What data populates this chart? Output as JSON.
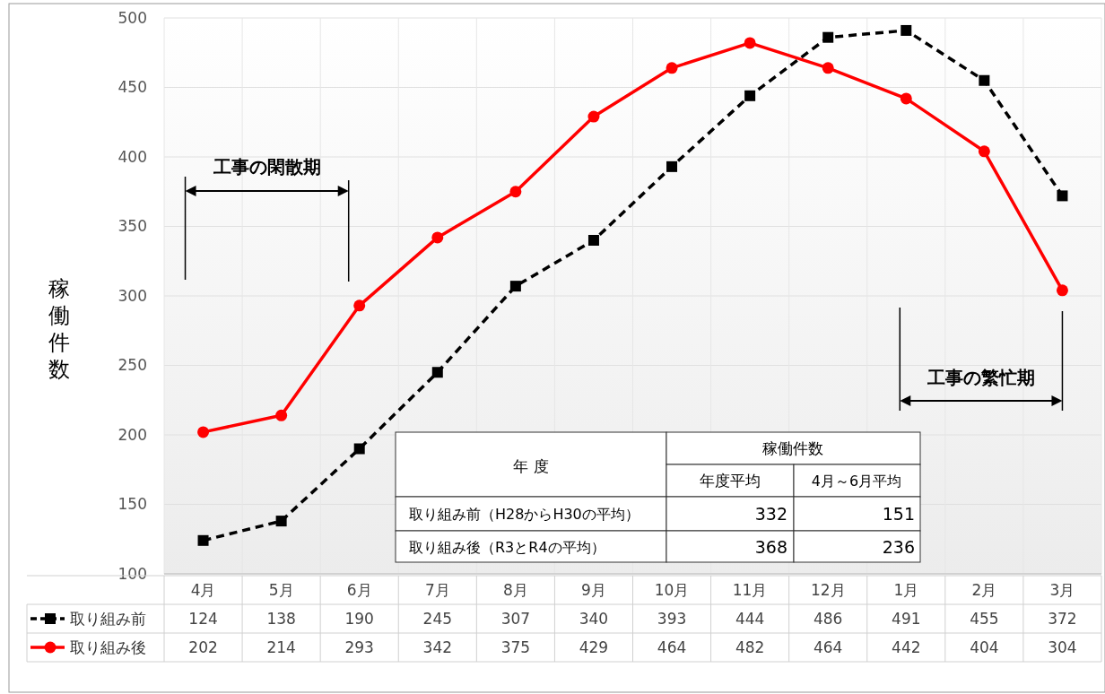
{
  "chart_data": {
    "type": "line",
    "ylabel": "稼働件数",
    "categories": [
      "4月",
      "5月",
      "6月",
      "7月",
      "8月",
      "9月",
      "10月",
      "11月",
      "12月",
      "1月",
      "2月",
      "3月"
    ],
    "series": [
      {
        "name": "取り組み前",
        "color": "#000000",
        "marker": "square",
        "line_style": "dashed",
        "values": [
          124,
          138,
          190,
          245,
          307,
          340,
          393,
          444,
          486,
          491,
          455,
          372
        ]
      },
      {
        "name": "取り組み後",
        "color": "#ff0000",
        "marker": "circle",
        "line_style": "solid",
        "values": [
          202,
          214,
          293,
          342,
          375,
          429,
          464,
          482,
          464,
          442,
          404,
          304
        ]
      }
    ],
    "ylim": [
      100,
      500
    ],
    "yticks": [
      100,
      150,
      200,
      250,
      300,
      350,
      400,
      450,
      500
    ],
    "grid": true,
    "data_labels": true,
    "legend": "bottom",
    "annotations": [
      "工事の閑散期",
      "工事の繁忙期",
      "年 度",
      "稼働件数",
      "年度平均",
      "4月～6月平均",
      "取り組み前（H28からH30の平均）",
      "332",
      "151",
      "取り組み後（R3とR4の平均）",
      "368",
      "236"
    ]
  }
}
